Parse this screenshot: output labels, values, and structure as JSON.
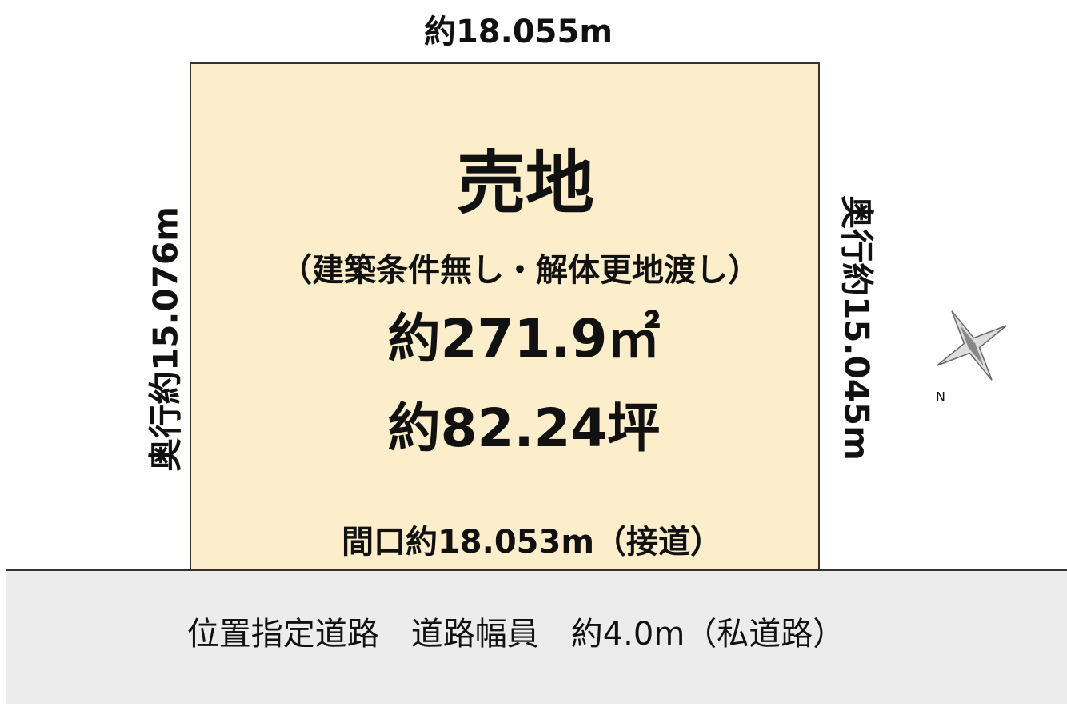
{
  "plot": {
    "top_width": "約18.055m",
    "left_depth": "奥行約15.076m",
    "right_depth": "奥行約15.045m",
    "title": "売地",
    "condition": "（建築条件無し・解体更地渡し）",
    "area_sqm": "約271.9㎡",
    "area_tsubo": "約82.24坪",
    "frontage": "間口約18.053m（接道）"
  },
  "road": {
    "label": "位置指定道路　道路幅員　約4.0m（私道路）"
  }
}
